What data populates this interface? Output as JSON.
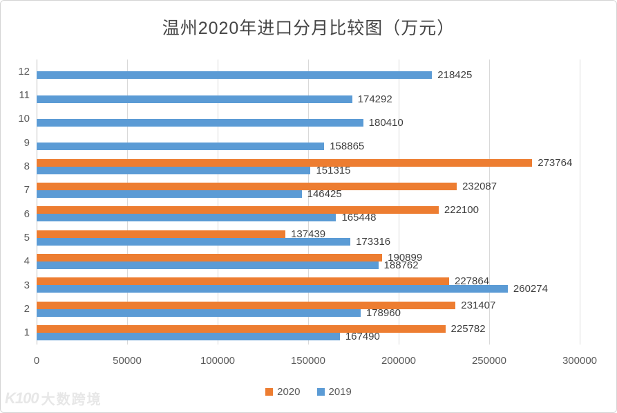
{
  "title": "温州2020年进口分月比较图（万元）",
  "colors": {
    "series_2020": "#ED7D31",
    "series_2019": "#5B9BD5",
    "gridline": "#D9D9D9",
    "axis_text": "#595959",
    "data_label_text": "#3F3F3F",
    "title_text": "#454545",
    "watermark": "#E7E7E7"
  },
  "legend": {
    "items": [
      {
        "label": "2020",
        "color": "#ED7D31"
      },
      {
        "label": "2019",
        "color": "#5B9BD5"
      }
    ]
  },
  "watermark": {
    "logo": "K100",
    "text": "大数跨境"
  },
  "chart_data": {
    "type": "bar",
    "orientation": "horizontal",
    "title": "温州2020年进口分月比较图（万元）",
    "xlabel": "",
    "ylabel": "",
    "categories": [
      1,
      2,
      3,
      4,
      5,
      6,
      7,
      8,
      9,
      10,
      11,
      12
    ],
    "series": [
      {
        "name": "2020",
        "color": "#ED7D31",
        "values": [
          225782,
          231407,
          227864,
          190899,
          137439,
          222100,
          232087,
          273764,
          null,
          null,
          null,
          null
        ]
      },
      {
        "name": "2019",
        "color": "#5B9BD5",
        "values": [
          167490,
          178960,
          260274,
          188762,
          173316,
          165448,
          146425,
          151315,
          158865,
          180410,
          174292,
          218425
        ]
      }
    ],
    "xlim": [
      0,
      300000
    ],
    "x_ticks": [
      0,
      50000,
      100000,
      150000,
      200000,
      250000,
      300000
    ],
    "grid": true,
    "data_labels": true,
    "legend_position": "bottom"
  }
}
